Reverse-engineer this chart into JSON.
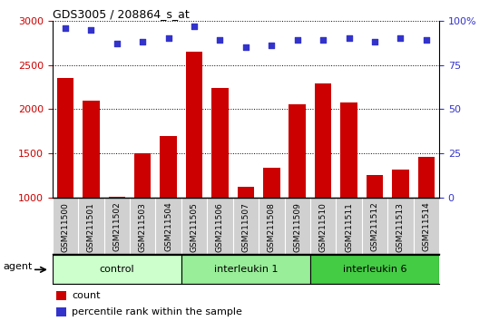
{
  "title": "GDS3005 / 208864_s_at",
  "samples": [
    "GSM211500",
    "GSM211501",
    "GSM211502",
    "GSM211503",
    "GSM211504",
    "GSM211505",
    "GSM211506",
    "GSM211507",
    "GSM211508",
    "GSM211509",
    "GSM211510",
    "GSM211511",
    "GSM211512",
    "GSM211513",
    "GSM211514"
  ],
  "counts": [
    2350,
    2100,
    1010,
    1500,
    1700,
    2650,
    2240,
    1120,
    1340,
    2060,
    2290,
    2080,
    1250,
    1320,
    1460
  ],
  "percentiles": [
    96,
    95,
    87,
    88,
    90,
    97,
    89,
    85,
    86,
    89,
    89,
    90,
    88,
    90,
    89
  ],
  "bar_color": "#cc0000",
  "dot_color": "#3333cc",
  "ylim_left": [
    1000,
    3000
  ],
  "ylim_right": [
    0,
    100
  ],
  "yticks_left": [
    1000,
    1500,
    2000,
    2500,
    3000
  ],
  "yticks_right": [
    0,
    25,
    50,
    75,
    100
  ],
  "yticklabels_right": [
    "0",
    "25",
    "50",
    "75",
    "100%"
  ],
  "groups": [
    {
      "label": "control",
      "start": 0,
      "end": 4,
      "color": "#ccffcc"
    },
    {
      "label": "interleukin 1",
      "start": 5,
      "end": 9,
      "color": "#88ee88"
    },
    {
      "label": "interleukin 6",
      "start": 10,
      "end": 14,
      "color": "#44cc44"
    }
  ],
  "agent_label": "agent",
  "left_color": "#cc0000",
  "right_color": "#3333cc",
  "background_color": "#ffffff",
  "label_area_color": "#d0d0d0",
  "legend_count_color": "#cc0000",
  "legend_pct_color": "#3333cc",
  "bar_bottom": 1000
}
